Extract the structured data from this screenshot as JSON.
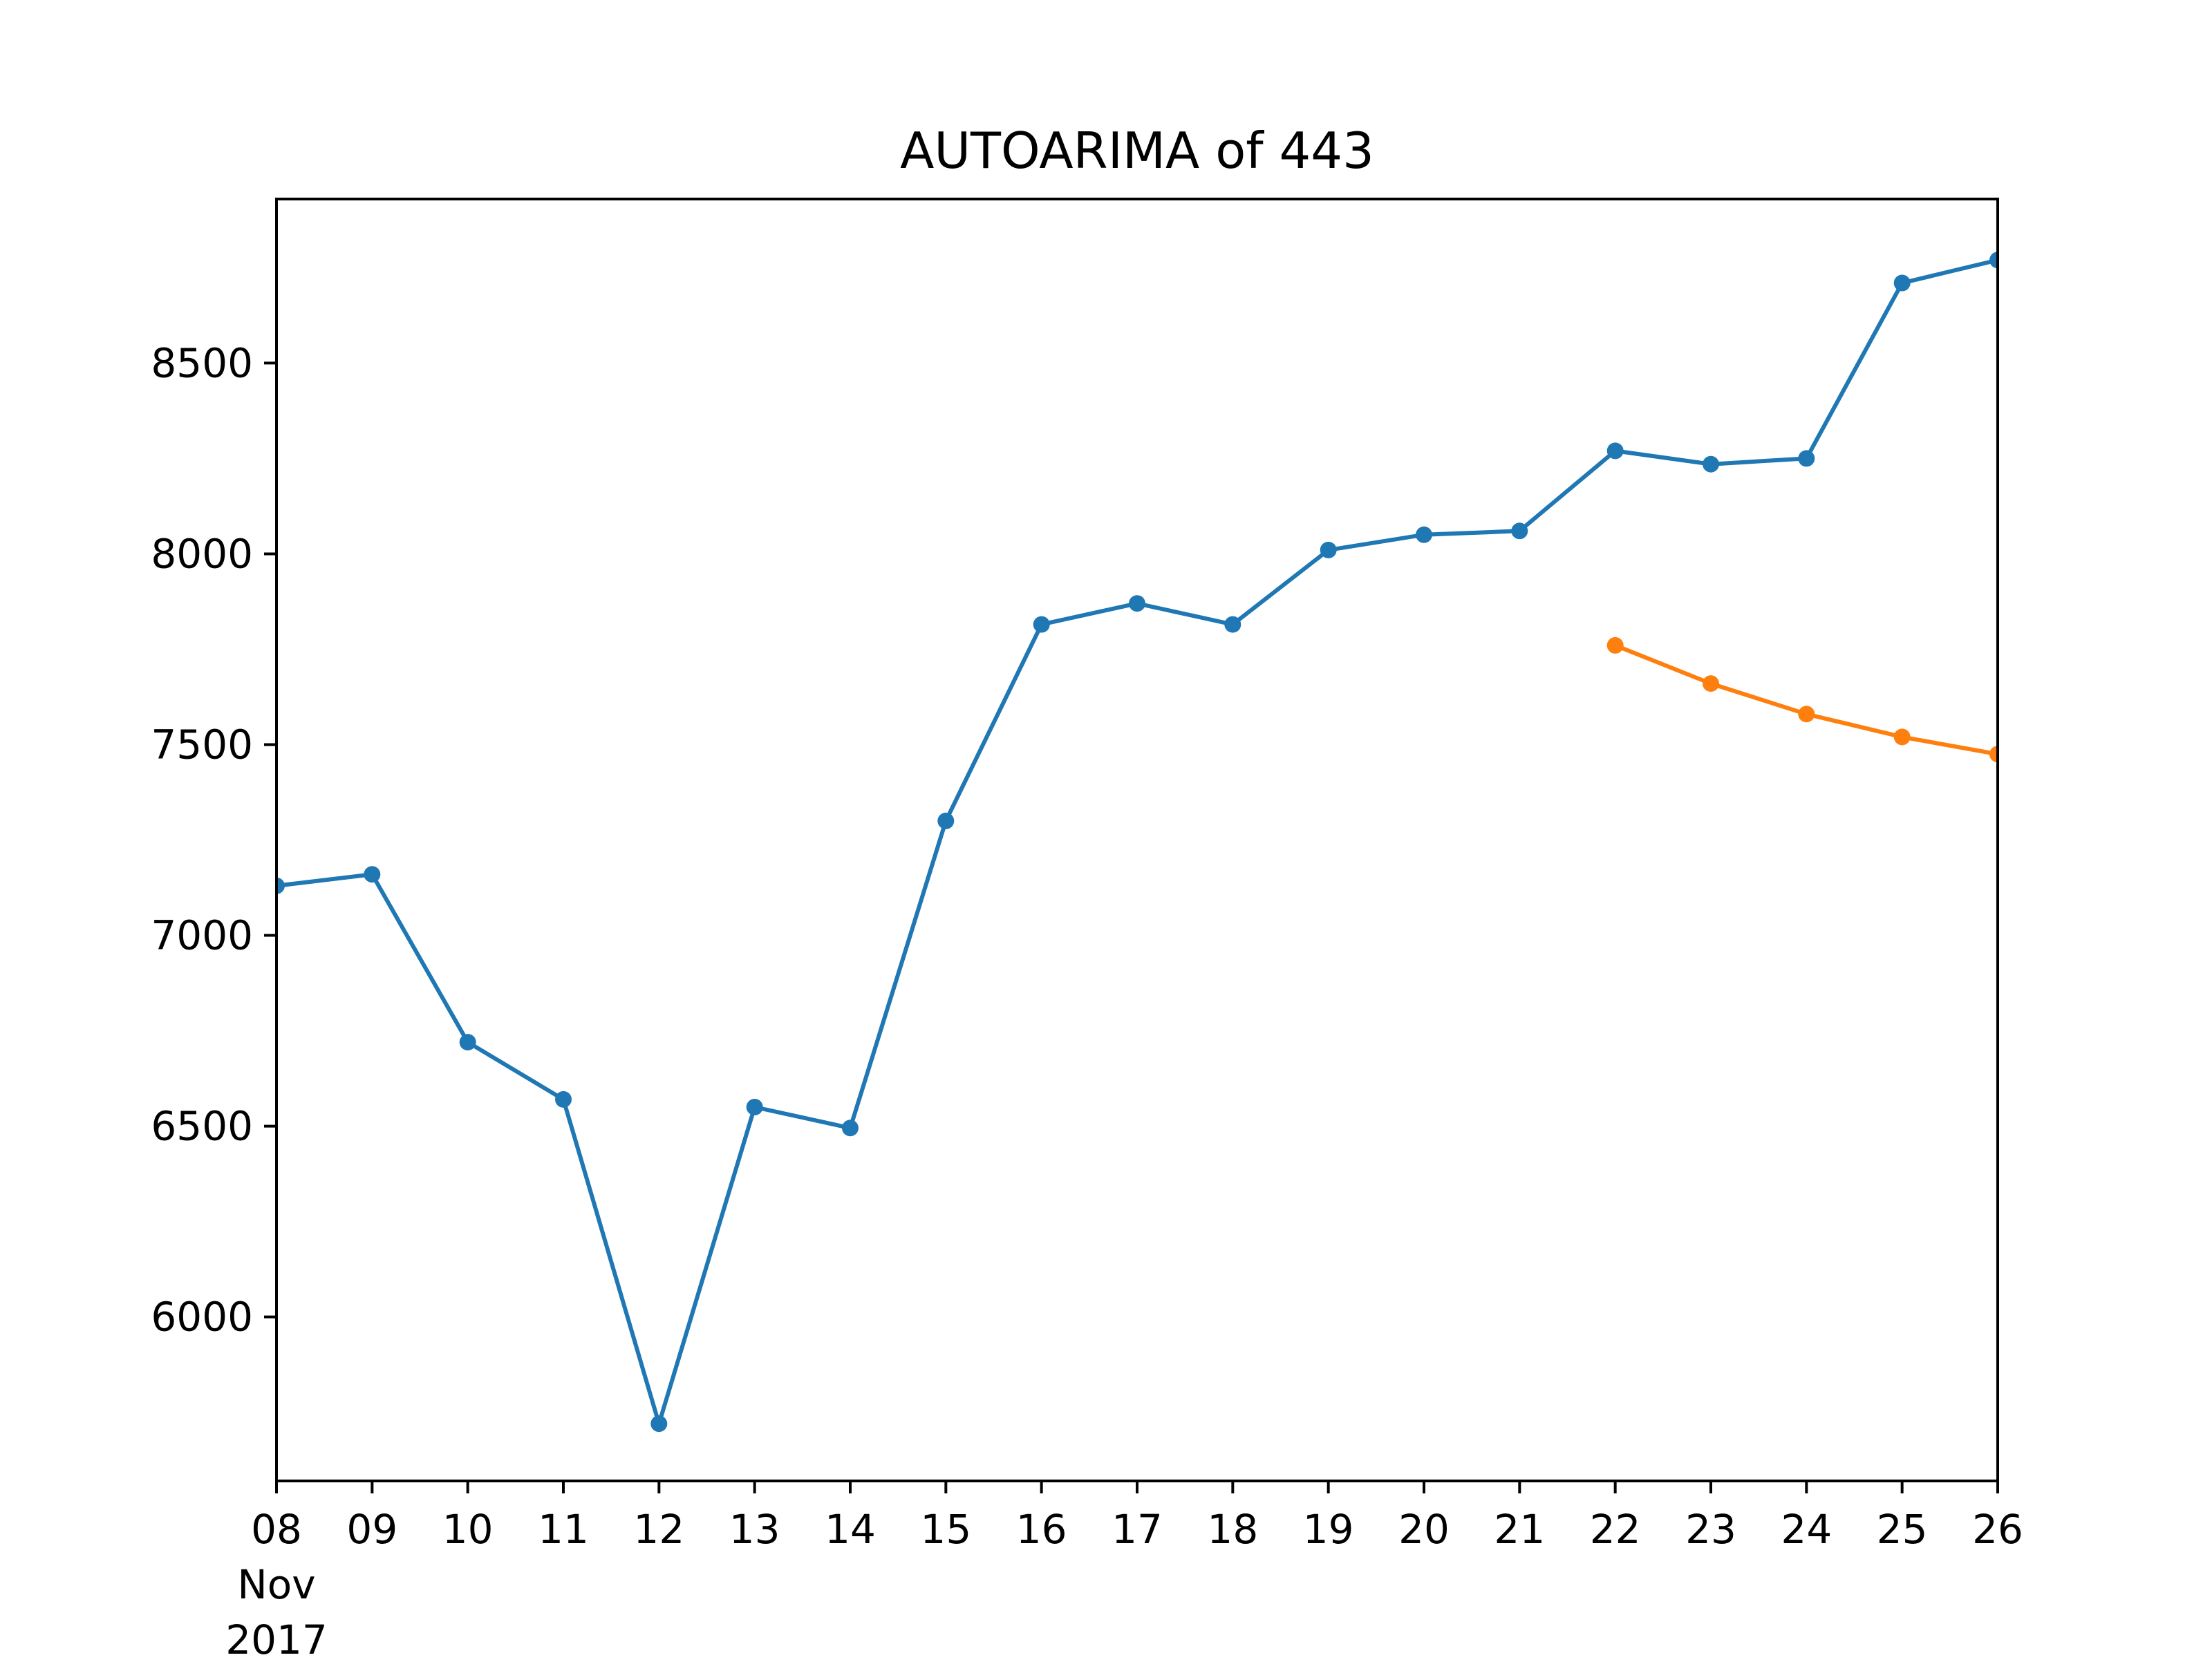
{
  "chart_data": {
    "type": "line",
    "title": "AUTOARIMA of 443",
    "xlabel": "",
    "ylabel": "",
    "x": [
      "2017-11-08",
      "2017-11-09",
      "2017-11-10",
      "2017-11-11",
      "2017-11-12",
      "2017-11-13",
      "2017-11-14",
      "2017-11-15",
      "2017-11-16",
      "2017-11-17",
      "2017-11-18",
      "2017-11-19",
      "2017-11-20",
      "2017-11-21",
      "2017-11-22",
      "2017-11-23",
      "2017-11-24",
      "2017-11-25",
      "2017-11-26"
    ],
    "x_tick_labels": [
      "08",
      "09",
      "10",
      "11",
      "12",
      "13",
      "14",
      "15",
      "16",
      "17",
      "18",
      "19",
      "20",
      "21",
      "22",
      "23",
      "24",
      "25",
      "26"
    ],
    "x_tick_sublabel": [
      "Nov",
      "2017"
    ],
    "xlim": [
      "2017-11-08",
      "2017-11-26"
    ],
    "ylim": [
      5570,
      8930
    ],
    "y_ticks": [
      6000,
      6500,
      7000,
      7500,
      8000,
      8500
    ],
    "grid": false,
    "series": [
      {
        "color": "#1f77b4",
        "x": [
          "2017-11-08",
          "2017-11-09",
          "2017-11-10",
          "2017-11-11",
          "2017-11-12",
          "2017-11-13",
          "2017-11-14",
          "2017-11-15",
          "2017-11-16",
          "2017-11-17",
          "2017-11-18",
          "2017-11-19",
          "2017-11-20",
          "2017-11-21",
          "2017-11-22",
          "2017-11-23",
          "2017-11-24",
          "2017-11-25",
          "2017-11-26"
        ],
        "values": [
          7130,
          7160,
          6720,
          6570,
          5720,
          6550,
          6495,
          7300,
          7815,
          7870,
          7815,
          8010,
          8050,
          8060,
          8270,
          8235,
          8250,
          8710,
          8770
        ]
      },
      {
        "color": "#ff7f0e",
        "x": [
          "2017-11-22",
          "2017-11-23",
          "2017-11-24",
          "2017-11-25",
          "2017-11-26"
        ],
        "values": [
          7760,
          7660,
          7580,
          7520,
          7475
        ]
      }
    ]
  }
}
